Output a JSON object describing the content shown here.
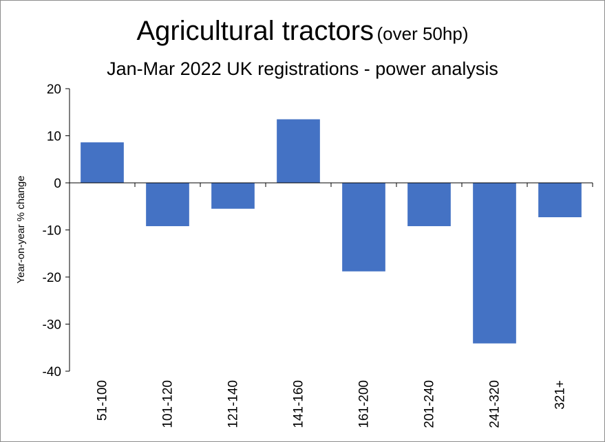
{
  "chart_data": {
    "type": "bar",
    "title": "Agricultural tractors",
    "title_suffix": "(over 50hp)",
    "subtitle": "Jan-Mar 2022 UK registrations - power analysis",
    "xlabel": "",
    "ylabel": "Year-on-year  % change",
    "categories": [
      "51-100",
      "101-120",
      "121-140",
      "141-160",
      "161-200",
      "201-240",
      "241-320",
      "321+"
    ],
    "values": [
      8.6,
      -9.2,
      -5.5,
      13.5,
      -18.8,
      -9.2,
      -34.1,
      -7.3
    ],
    "ylim": [
      -40,
      20
    ],
    "yticks": [
      "20",
      "10",
      "0",
      "-10",
      "-20",
      "-30",
      "-40"
    ],
    "bar_color": "#4472C4",
    "grid": false,
    "legend": "none"
  }
}
